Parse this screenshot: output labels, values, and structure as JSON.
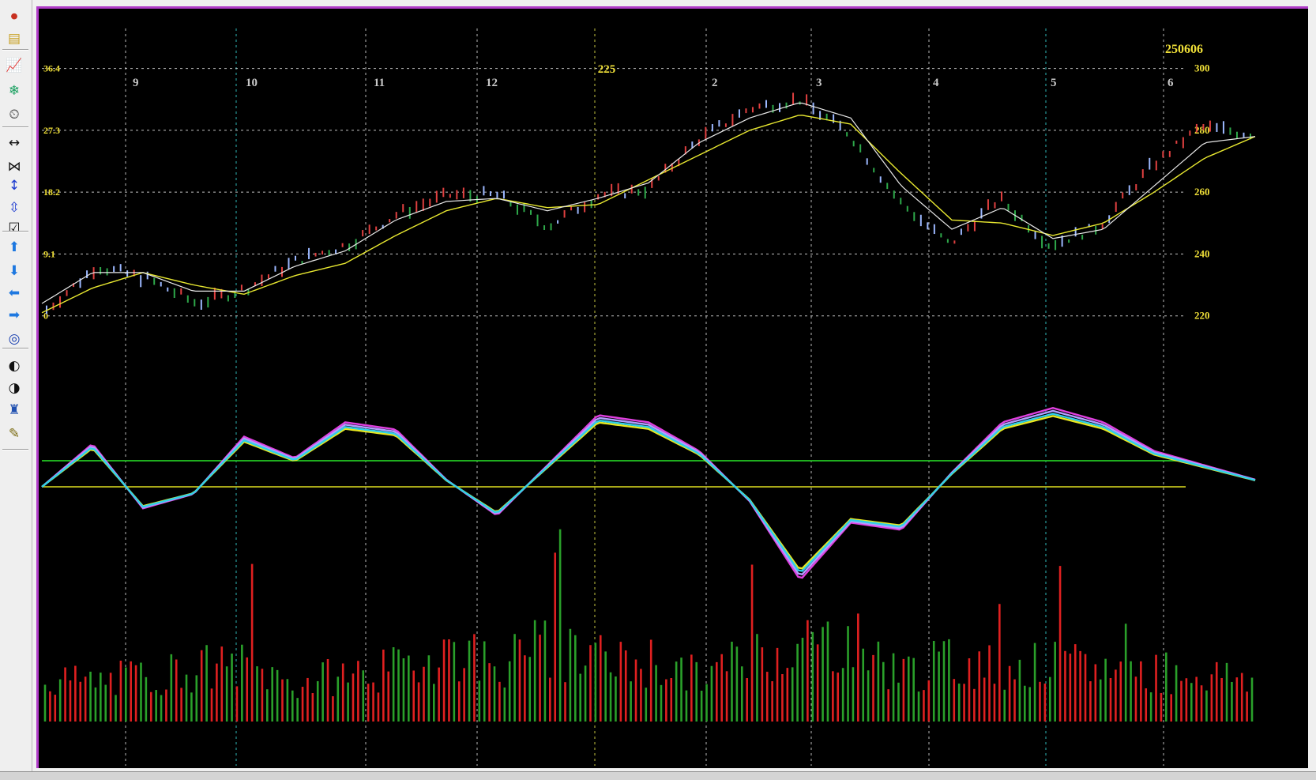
{
  "toolbar": {
    "icons": [
      "stop-icon",
      "note-icon",
      "line-chart-icon",
      "snowflake-icon",
      "clock-icon",
      "expand-horizontal-icon",
      "compress-horizontal-icon",
      "expand-vertical-icon",
      "compress-vertical-icon",
      "checkbox-icon",
      "arrow-up-icon",
      "arrow-down-icon",
      "arrow-left-icon",
      "arrow-right-icon",
      "target-icon",
      "half-circle-left-icon",
      "half-circle-right-icon",
      "figure-icon",
      "pencil-icon"
    ]
  },
  "header": {
    "date_label": "250606",
    "mid_label": "225"
  },
  "colors": {
    "background": "#000000",
    "frame": "#b03cc8",
    "grid": "#d8d8d8",
    "grid_cyan": "#38d8d8",
    "grid_yellow": "#e8e84a",
    "label": "#f0e038",
    "up_bar": "#e02020",
    "down_bar": "#2aa02a",
    "price_up": "#e04040",
    "price_down": "#2ea84a",
    "price_cont": "#9cb8ff",
    "ma_slow": "#e8e830",
    "ma_fast": "#e8e8e8",
    "osc1": "#e040e0",
    "osc2": "#b0a0ff",
    "osc3": "#e8e820",
    "osc4": "#30d0e8"
  },
  "chart_data": {
    "type": "line",
    "title": "250606",
    "x_month_labels": [
      "9",
      "10",
      "11",
      "12",
      "2",
      "3",
      "4",
      "5",
      "6"
    ],
    "special_label": "225",
    "y_right": {
      "ticks": [
        300,
        280,
        260,
        240,
        220
      ],
      "range": [
        212,
        304
      ]
    },
    "y_left": {
      "ticks": [
        "36.4",
        "27.3",
        "18.2",
        "9.1",
        "0"
      ]
    },
    "series": [
      {
        "name": "price",
        "x": [
          0,
          6,
          12,
          18,
          24,
          30,
          36,
          42,
          48,
          54,
          60,
          66,
          72,
          78,
          84,
          90,
          96,
          102,
          108,
          114,
          120,
          126,
          132,
          138,
          144
        ],
        "values": [
          222,
          236,
          232,
          224,
          229,
          238,
          243,
          253,
          259,
          259,
          249,
          259,
          261,
          277,
          287,
          290,
          279,
          257,
          243,
          258,
          243,
          249,
          268,
          281,
          279
        ]
      },
      {
        "name": "ma-slow",
        "values": [
          221,
          229,
          234,
          230,
          227,
          233,
          237,
          246,
          254,
          258,
          255,
          256,
          264,
          272,
          280,
          285,
          282,
          266,
          251,
          250,
          246,
          250,
          260,
          271,
          278
        ]
      },
      {
        "name": "ma-fast",
        "values": [
          224,
          234,
          234,
          228,
          228,
          236,
          241,
          251,
          257,
          258,
          254,
          258,
          263,
          276,
          284,
          289,
          284,
          262,
          248,
          255,
          245,
          248,
          262,
          276,
          278
        ]
      },
      {
        "name": "oscillator",
        "values": [
          0,
          12,
          -6,
          -2,
          14,
          8,
          18,
          16,
          2,
          -8,
          6,
          20,
          18,
          10,
          -4,
          -26,
          -10,
          -12,
          4,
          18,
          22,
          18,
          10,
          6,
          2
        ]
      },
      {
        "name": "volume",
        "values": [
          34,
          31,
          36,
          42,
          44,
          29,
          38,
          41,
          58,
          46,
          57,
          44,
          48,
          35,
          52,
          61,
          66,
          39,
          47,
          43,
          44,
          42,
          40,
          38,
          34
        ]
      }
    ],
    "reference_lines": {
      "green": 0.58,
      "yellow": 0.61
    },
    "grid": true
  }
}
